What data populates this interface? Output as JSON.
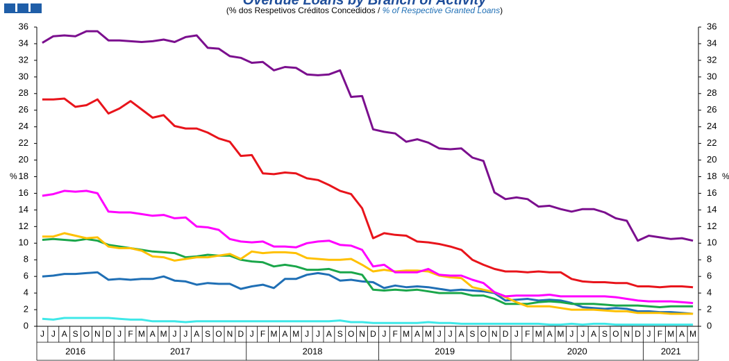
{
  "chart_data": {
    "type": "line",
    "title": "Overdue Loans by Branch of Activity",
    "subtitle": [
      "(% dos Respetivos  Créditos Concedidos / ",
      "% of Respective Granted Loans",
      ")"
    ],
    "ylabel": "%",
    "y2label": "%",
    "categories": [
      "J",
      "J",
      "A",
      "S",
      "O",
      "N",
      "D",
      "J",
      "F",
      "M",
      "A",
      "M",
      "J",
      "J",
      "A",
      "S",
      "O",
      "N",
      "D",
      "J",
      "F",
      "M",
      "A",
      "M",
      "J",
      "J",
      "A",
      "S",
      "O",
      "N",
      "D",
      "J",
      "F",
      "M",
      "A",
      "M",
      "J",
      "J",
      "A",
      "S",
      "O",
      "N",
      "D",
      "J",
      "F",
      "M",
      "A",
      "M",
      "J",
      "J",
      "A",
      "S",
      "O",
      "N",
      "D",
      "J",
      "F",
      "M",
      "A",
      "M"
    ],
    "years": [
      "2016",
      "2017",
      "2018",
      "2019",
      "2020",
      "2021"
    ],
    "ylim": [
      0,
      36
    ],
    "yticks": [
      0,
      2,
      4,
      6,
      8,
      10,
      12,
      14,
      16,
      18,
      20,
      22,
      24,
      26,
      28,
      30,
      32,
      34,
      36
    ],
    "y2lim": [
      0,
      36
    ],
    "y2ticks": [
      0,
      2,
      4,
      6,
      8,
      10,
      12,
      14,
      16,
      18,
      20,
      22,
      24,
      26,
      28,
      30,
      32,
      34,
      36
    ],
    "grid": false,
    "series": [
      {
        "color": "#7b0f8e",
        "values": [
          34.1,
          34.9,
          35.0,
          34.9,
          35.5,
          35.5,
          34.4,
          34.4,
          34.3,
          34.2,
          34.3,
          34.5,
          34.2,
          34.8,
          35.0,
          33.5,
          33.4,
          32.5,
          32.3,
          31.7,
          31.8,
          30.8,
          31.2,
          31.1,
          30.3,
          30.2,
          30.3,
          30.8,
          27.6,
          27.7,
          23.7,
          23.4,
          23.2,
          22.2,
          22.5,
          22.1,
          21.4,
          21.3,
          21.4,
          20.3,
          19.9,
          16.1,
          15.3,
          15.5,
          15.3,
          14.4,
          14.5,
          14.1,
          13.8,
          14.1,
          14.1,
          13.7,
          13.0,
          12.7,
          10.3,
          10.9,
          10.7,
          10.5,
          10.6,
          10.3
        ]
      },
      {
        "color": "#e8141b",
        "values": [
          27.3,
          27.3,
          27.4,
          26.4,
          26.6,
          27.3,
          25.6,
          26.2,
          27.1,
          26.1,
          25.1,
          25.4,
          24.1,
          23.8,
          23.8,
          23.3,
          22.6,
          22.2,
          20.5,
          20.6,
          18.4,
          18.3,
          18.5,
          18.4,
          17.8,
          17.6,
          17.0,
          16.3,
          15.9,
          14.2,
          10.6,
          11.2,
          11.0,
          10.9,
          10.2,
          10.1,
          9.9,
          9.6,
          9.2,
          8.0,
          7.4,
          6.9,
          6.6,
          6.6,
          6.5,
          6.6,
          6.5,
          6.5,
          5.7,
          5.4,
          5.3,
          5.3,
          5.2,
          5.2,
          4.8,
          4.8,
          4.7,
          4.8,
          4.8,
          4.7
        ]
      },
      {
        "color": "#ff00ff",
        "values": [
          15.7,
          15.9,
          16.3,
          16.2,
          16.3,
          16.0,
          13.8,
          13.7,
          13.7,
          13.5,
          13.3,
          13.4,
          13.0,
          13.1,
          12.0,
          11.9,
          11.6,
          10.5,
          10.2,
          10.1,
          10.2,
          9.6,
          9.6,
          9.5,
          10.0,
          10.2,
          10.3,
          9.8,
          9.7,
          9.2,
          7.2,
          7.4,
          6.5,
          6.5,
          6.5,
          6.9,
          6.2,
          6.1,
          6.1,
          5.6,
          5.2,
          4.1,
          3.6,
          3.7,
          3.7,
          3.7,
          3.8,
          3.6,
          3.6,
          3.6,
          3.6,
          3.6,
          3.5,
          3.3,
          3.1,
          3.0,
          3.0,
          3.0,
          2.9,
          2.8
        ]
      },
      {
        "color": "#ffc000",
        "values": [
          10.8,
          10.8,
          11.2,
          10.9,
          10.6,
          10.7,
          9.6,
          9.4,
          9.4,
          9.1,
          8.4,
          8.3,
          7.9,
          8.1,
          8.3,
          8.3,
          8.5,
          8.7,
          8.1,
          9.0,
          8.8,
          8.9,
          8.9,
          8.8,
          8.2,
          8.1,
          8.0,
          8.0,
          8.1,
          7.4,
          6.6,
          6.8,
          6.6,
          6.7,
          6.7,
          6.6,
          6.1,
          5.9,
          5.8,
          4.7,
          4.4,
          4.1,
          3.5,
          2.9,
          2.4,
          2.4,
          2.4,
          2.2,
          2.0,
          2.0,
          2.0,
          1.9,
          1.8,
          1.8,
          1.6,
          1.6,
          1.6,
          1.5,
          1.5,
          1.5
        ]
      },
      {
        "color": "#1aa64a",
        "values": [
          10.4,
          10.5,
          10.4,
          10.3,
          10.5,
          10.3,
          9.8,
          9.6,
          9.4,
          9.2,
          9.0,
          8.9,
          8.8,
          8.3,
          8.4,
          8.6,
          8.5,
          8.5,
          8.0,
          7.8,
          7.7,
          7.2,
          7.4,
          7.2,
          6.8,
          6.8,
          6.9,
          6.5,
          6.5,
          6.2,
          4.4,
          4.3,
          4.4,
          4.3,
          4.4,
          4.2,
          4.0,
          4.0,
          4.0,
          3.7,
          3.7,
          3.3,
          2.7,
          2.7,
          2.7,
          2.9,
          3.0,
          2.9,
          2.7,
          2.7,
          2.7,
          2.6,
          2.5,
          2.5,
          2.5,
          2.4,
          2.3,
          2.4,
          2.4,
          2.4
        ]
      },
      {
        "color": "#1f6fb5",
        "values": [
          6.0,
          6.1,
          6.3,
          6.3,
          6.4,
          6.5,
          5.6,
          5.7,
          5.6,
          5.7,
          5.7,
          6.0,
          5.5,
          5.4,
          5.0,
          5.2,
          5.1,
          5.1,
          4.5,
          4.8,
          5.0,
          4.6,
          5.7,
          5.7,
          6.2,
          6.4,
          6.2,
          5.5,
          5.6,
          5.4,
          5.3,
          4.6,
          4.9,
          4.7,
          4.8,
          4.7,
          4.5,
          4.3,
          4.4,
          4.3,
          4.2,
          4.0,
          3.1,
          3.2,
          3.3,
          3.1,
          3.2,
          3.1,
          2.8,
          2.3,
          2.2,
          2.1,
          2.2,
          2.1,
          1.8,
          1.8,
          1.7,
          1.7,
          1.6,
          1.5
        ]
      },
      {
        "color": "#3fe8e8",
        "values": [
          0.9,
          0.8,
          1.0,
          1.0,
          1.0,
          1.0,
          1.0,
          0.9,
          0.8,
          0.8,
          0.6,
          0.6,
          0.6,
          0.5,
          0.6,
          0.6,
          0.6,
          0.6,
          0.6,
          0.6,
          0.6,
          0.6,
          0.6,
          0.6,
          0.6,
          0.6,
          0.6,
          0.7,
          0.5,
          0.5,
          0.4,
          0.4,
          0.4,
          0.4,
          0.4,
          0.5,
          0.4,
          0.4,
          0.3,
          0.3,
          0.3,
          0.3,
          0.3,
          0.3,
          0.3,
          0.3,
          0.2,
          0.2,
          0.3,
          0.2,
          0.3,
          0.3,
          0.2,
          0.2,
          0.2,
          0.2,
          0.2,
          0.2,
          0.2,
          0.2
        ]
      }
    ]
  }
}
